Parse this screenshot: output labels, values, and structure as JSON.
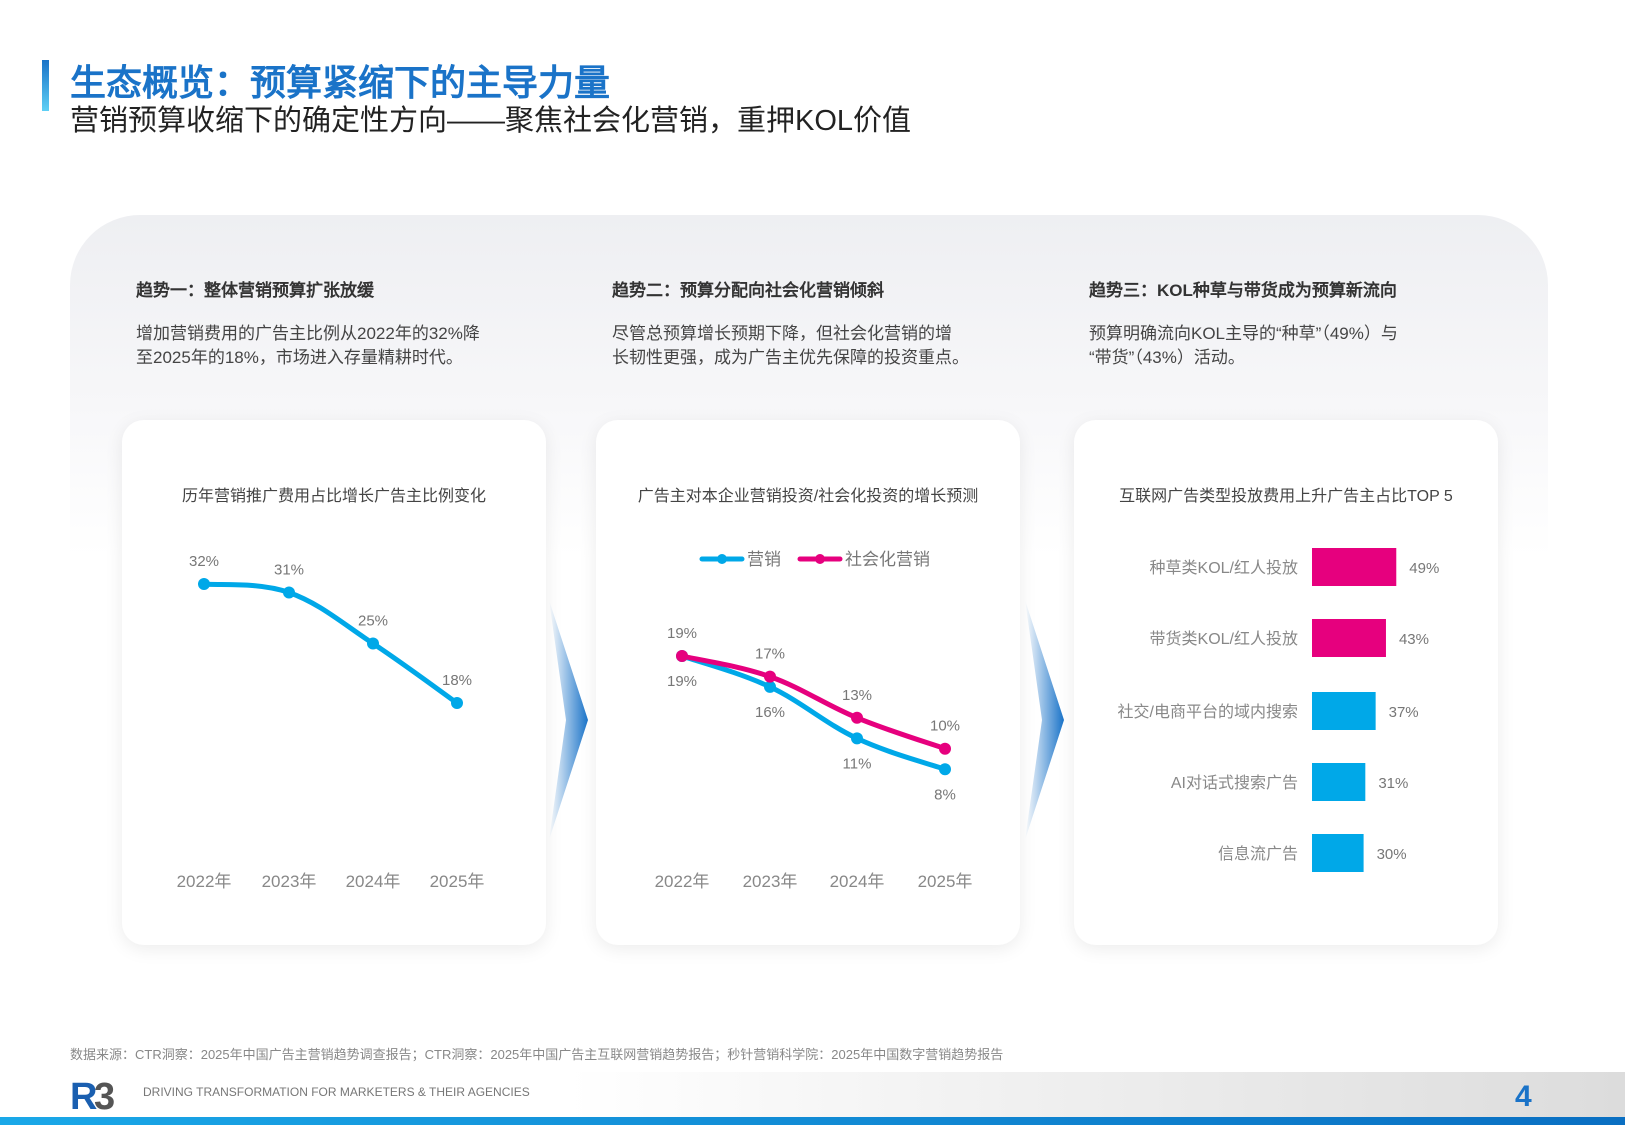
{
  "header": {
    "title": "生态概览：预算紧缩下的主导力量",
    "subtitle": "营销预算收缩下的确定性方向——聚焦社会化营销，重押KOL价值"
  },
  "trends": [
    {
      "heading": "趋势一：整体营销预算扩张放缓",
      "body": [
        "增加营销费用的广告主比例从2022年的32%降",
        "至2025年的18%，市场进入存量精耕时代。"
      ]
    },
    {
      "heading": "趋势二：预算分配向社会化营销倾斜",
      "body": [
        "尽管总预算增长预期下降，但社会化营销的增",
        "长韧性更强，成为广告主优先保障的投资重点。"
      ]
    },
    {
      "heading": "趋势三：KOL种草与带货成为预算新流向",
      "body": [
        "预算明确流向KOL主导的“种草”（49%）与",
        "“带货”（43%）活动。"
      ]
    }
  ],
  "chart_data": [
    {
      "type": "line",
      "title": "历年营销推广费用占比增长广告主比例变化",
      "categories": [
        "2022年",
        "2023年",
        "2024年",
        "2025年"
      ],
      "series": [
        {
          "values": [
            32,
            31,
            25,
            18
          ],
          "color": "#00a8e8"
        }
      ],
      "value_suffix": "%",
      "grid": false
    },
    {
      "type": "line",
      "title": "广告主对本企业营销投资/社会化投资的增长预测",
      "categories": [
        "2022年",
        "2023年",
        "2024年",
        "2025年"
      ],
      "series": [
        {
          "name": "营销",
          "values": [
            19,
            16,
            11,
            8
          ],
          "color": "#00a8e8"
        },
        {
          "name": "社会化营销",
          "values": [
            19,
            17,
            13,
            10
          ],
          "color": "#e6007e"
        }
      ],
      "value_suffix": "%",
      "legend": "top",
      "grid": false
    },
    {
      "type": "bar",
      "orientation": "horizontal",
      "title": "互联网广告类型投放费用上升广告主占比TOP 5",
      "categories": [
        "种草类KOL/红人投放",
        "带货类KOL/红人投放",
        "社交/电商平台的域内搜索",
        "AI对话式搜索广告",
        "信息流广告"
      ],
      "values": [
        49,
        43,
        37,
        31,
        30
      ],
      "colors": [
        "#e6007e",
        "#e6007e",
        "#00a8e8",
        "#00a8e8",
        "#00a8e8"
      ],
      "value_suffix": "%",
      "grid": false
    }
  ],
  "footer": {
    "source": "数据来源：CTR洞察：2025年中国广告主营销趋势调查报告；CTR洞察：2025年中国广告主互联网营销趋势报告；秒针营销科学院：2025年中国数字营销趋势报告",
    "logo_text": "R3",
    "tagline": "DRIVING TRANSFORMATION FOR MARKETERS & THEIR AGENCIES",
    "page_number": "4"
  },
  "colors": {
    "brand_blue": "#1a73c8",
    "cyan": "#00a8e8",
    "magenta": "#e6007e"
  }
}
